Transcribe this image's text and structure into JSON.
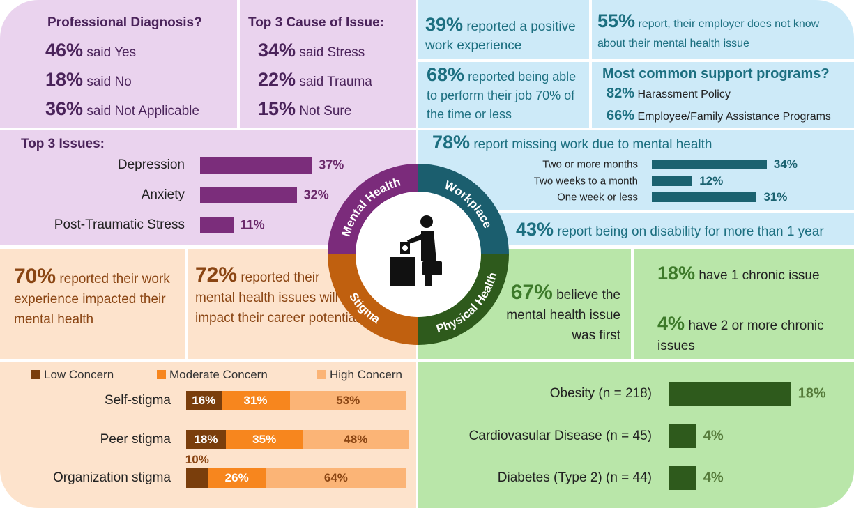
{
  "diagnosis": {
    "title": "Professional Diagnosis?",
    "items": [
      {
        "stat": "46%",
        "text": "said Yes"
      },
      {
        "stat": "18%",
        "text": "said No"
      },
      {
        "stat": "36%",
        "text": "said Not Applicable"
      }
    ]
  },
  "cause": {
    "title": "Top 3 Cause of Issue:",
    "items": [
      {
        "stat": "34%",
        "text": "said Stress"
      },
      {
        "stat": "22%",
        "text": "said Trauma"
      },
      {
        "stat": "15%",
        "text": "Not Sure"
      }
    ]
  },
  "issues": {
    "title": "Top 3 Issues:",
    "categories": [
      "Depression",
      "Anxiety",
      "Post-Traumatic Stress"
    ],
    "values": [
      37,
      32,
      11
    ],
    "value_labels": [
      "37%",
      "32%",
      "11%"
    ],
    "color": "#7b2d7b"
  },
  "positive": {
    "stat": "39%",
    "text": "reported a positive work experience"
  },
  "employer": {
    "stat": "55%",
    "text": "report, their employer does not know about their mental health issue"
  },
  "perform": {
    "stat": "68%",
    "text": "reported being able to perform their job 70% of the time or less"
  },
  "support": {
    "title": "Most common support programs?",
    "items": [
      {
        "stat": "82%",
        "text": "Harassment Policy"
      },
      {
        "stat": "66%",
        "text": "Employee/Family Assistance Programs"
      }
    ]
  },
  "missing": {
    "stat": "78%",
    "text": "report missing work due to mental health",
    "categories": [
      "Two or more months",
      "Two weeks to a month",
      "One week or less"
    ],
    "values": [
      34,
      12,
      31
    ],
    "value_labels": [
      "34%",
      "12%",
      "31%"
    ],
    "color": "#1b6270"
  },
  "disability": {
    "stat": "43%",
    "text": "report being on disability for more than 1 year"
  },
  "impacted": {
    "stat": "70%",
    "text": "reported their work experience impacted their mental health"
  },
  "career": {
    "stat": "72%",
    "text": "reported their mental health issues will impact their career potential"
  },
  "stigma": {
    "categories": [
      "Self-stigma",
      "Peer stigma",
      "Organization stigma"
    ],
    "series": [
      {
        "name": "Low Concern",
        "color": "#7a3e0c",
        "values": [
          16,
          18,
          10
        ],
        "value_labels": [
          "16%",
          "18%",
          "10%"
        ]
      },
      {
        "name": "Moderate Concern",
        "color": "#f7861e",
        "values": [
          31,
          35,
          26
        ],
        "value_labels": [
          "31%",
          "35%",
          "26%"
        ]
      },
      {
        "name": "High Concern",
        "color": "#fbb476",
        "values": [
          53,
          48,
          64
        ],
        "value_labels": [
          "53%",
          "48%",
          "64%"
        ]
      }
    ]
  },
  "believe": {
    "stat": "67%",
    "text": "believe the mental health issue was first"
  },
  "chronic": {
    "items": [
      {
        "stat": "18%",
        "text": "have 1 chronic issue"
      },
      {
        "stat": "4%",
        "text": "have 2 or more chronic issues"
      }
    ]
  },
  "diseases": {
    "categories": [
      "Obesity (n = 218)",
      "Cardiovasular Disease (n = 45)",
      "Diabetes (Type 2) (n = 44)"
    ],
    "values": [
      18,
      4,
      4
    ],
    "value_labels": [
      "18%",
      "4%",
      "4%"
    ],
    "color": "#2e5a1c"
  },
  "circle": {
    "labels": [
      "Mental Health",
      "Workplace",
      "Stigma",
      "Physical Health"
    ]
  }
}
